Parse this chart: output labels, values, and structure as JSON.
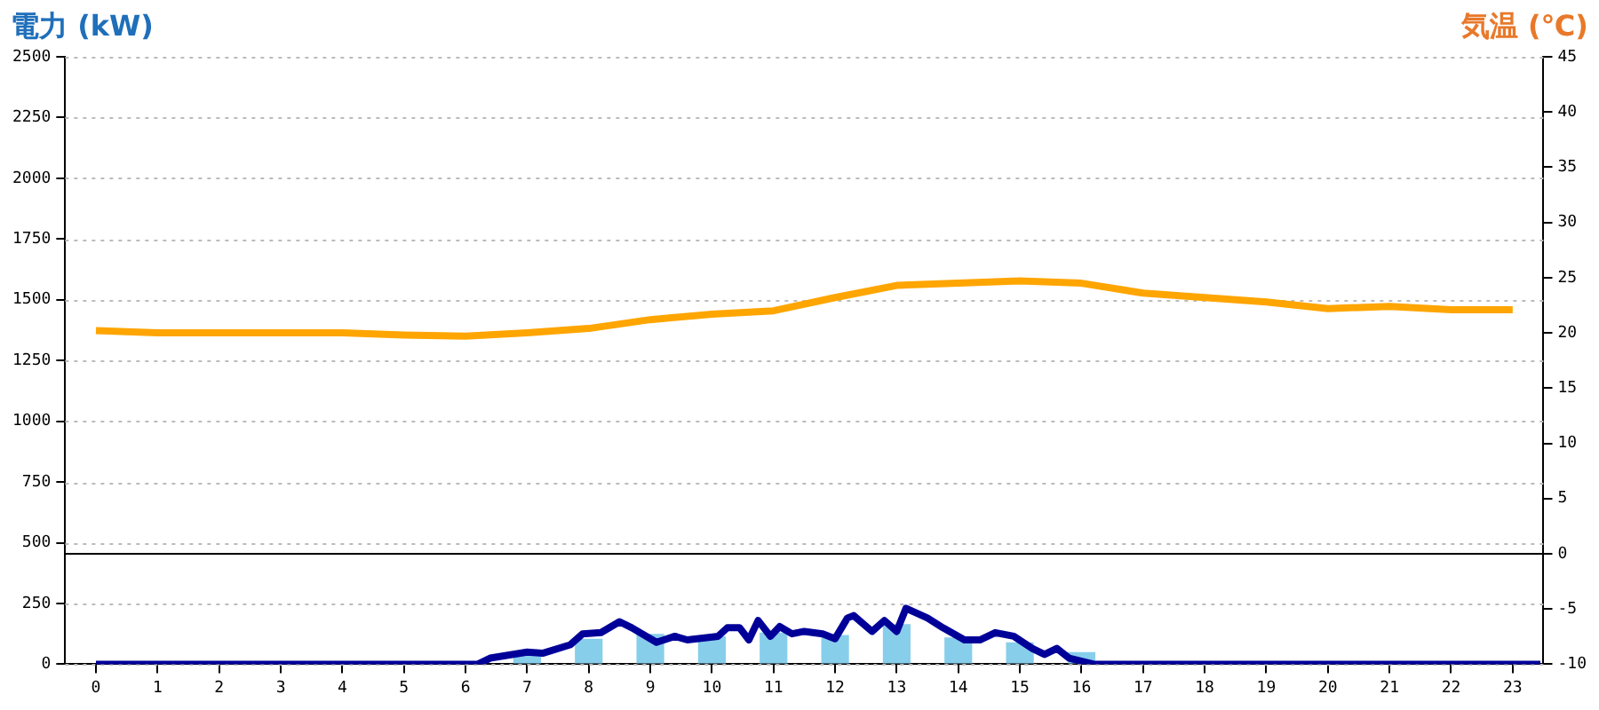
{
  "chart_data": {
    "type": "bar",
    "ylabel": "電力 (kW)",
    "y2label": "気温 (℃)",
    "x": [
      0,
      1,
      2,
      3,
      4,
      5,
      6,
      7,
      8,
      9,
      10,
      11,
      12,
      13,
      14,
      15,
      16,
      17,
      18,
      19,
      20,
      21,
      22,
      23
    ],
    "xlim": [
      -0.5,
      23.5
    ],
    "xticks": [
      0,
      1,
      2,
      3,
      4,
      5,
      6,
      7,
      8,
      9,
      10,
      11,
      12,
      13,
      14,
      15,
      16,
      17,
      18,
      19,
      20,
      21,
      22,
      23
    ],
    "ylim": [
      0,
      2500
    ],
    "yticks": [
      0,
      250,
      500,
      750,
      1000,
      1250,
      1500,
      1750,
      2000,
      2250,
      2500
    ],
    "y2lim": [
      -10,
      45
    ],
    "y2ticks": [
      -10,
      -5,
      0,
      5,
      10,
      15,
      20,
      25,
      30,
      35,
      40,
      45
    ],
    "grid": "y",
    "legend": false,
    "ref_lines": [
      {
        "axis": "y2",
        "value": 0,
        "color": "#000000"
      }
    ],
    "series": [
      {
        "color": "#87ceeb",
        "values": [
          0,
          0,
          0,
          0,
          0,
          0,
          0,
          45,
          105,
          125,
          115,
          130,
          120,
          165,
          110,
          90,
          50,
          0,
          0,
          0,
          0,
          0,
          0,
          0
        ]
      },
      {
        "type": "line",
        "color": "#000099",
        "x": [
          0,
          6.2,
          6.4,
          7.0,
          7.25,
          7.7,
          7.9,
          8.2,
          8.5,
          8.7,
          9.1,
          9.4,
          9.6,
          10.1,
          10.25,
          10.45,
          10.6,
          10.75,
          10.95,
          11.1,
          11.3,
          11.5,
          11.8,
          12.0,
          12.2,
          12.3,
          12.6,
          12.8,
          13.0,
          13.15,
          13.5,
          13.75,
          14.1,
          14.35,
          14.6,
          14.9,
          15.2,
          15.4,
          15.6,
          15.8,
          16.2,
          23.45
        ],
        "values": [
          0,
          0,
          25,
          50,
          45,
          80,
          125,
          130,
          175,
          150,
          90,
          115,
          100,
          115,
          150,
          150,
          100,
          180,
          115,
          155,
          125,
          135,
          125,
          105,
          190,
          200,
          135,
          180,
          135,
          230,
          190,
          150,
          100,
          100,
          130,
          115,
          65,
          40,
          65,
          25,
          0,
          0
        ]
      },
      {
        "type": "line",
        "axis": "y2",
        "color": "#ffa500",
        "values": [
          20.2,
          20.0,
          20.0,
          20.0,
          20.0,
          19.8,
          19.7,
          20.0,
          20.4,
          21.2,
          21.7,
          22.0,
          23.2,
          24.3,
          24.5,
          24.7,
          24.5,
          23.6,
          23.2,
          22.8,
          22.2,
          22.4,
          22.1,
          22.1
        ]
      }
    ]
  }
}
